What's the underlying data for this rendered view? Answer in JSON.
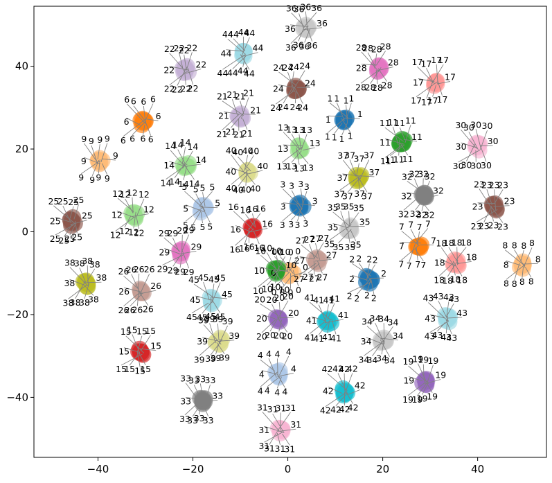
{
  "chart_data": {
    "type": "scatter",
    "title": "",
    "xlabel": "",
    "ylabel": "",
    "xlim": [
      -53.5,
      54.5
    ],
    "ylim": [
      -54.5,
      54.5
    ],
    "grid": false,
    "legend": "none",
    "x_ticks": [
      -40,
      -20,
      0,
      20,
      40
    ],
    "y_ticks": [
      -40,
      -20,
      0,
      20,
      40
    ],
    "x_tick_labels": [
      "−40",
      "−20",
      "0",
      "20",
      "40"
    ],
    "y_tick_labels": [
      "−40",
      "−20",
      "0",
      "20",
      "40"
    ],
    "arrow_color": "#808080",
    "clusters": [
      {
        "id": 0,
        "label": "0",
        "x": 0.5,
        "y": -10.0,
        "color": "#ffbb78"
      },
      {
        "id": 1,
        "label": "1",
        "x": 12.0,
        "y": 27.0,
        "color": "#1f77b4"
      },
      {
        "id": 2,
        "label": "2",
        "x": 17.0,
        "y": -11.5,
        "color": "#1f77b4"
      },
      {
        "id": 3,
        "label": "3",
        "x": 2.5,
        "y": 6.0,
        "color": "#1f77b4"
      },
      {
        "id": 4,
        "label": "4",
        "x": -2.0,
        "y": -34.5,
        "color": "#aec7e8"
      },
      {
        "id": 5,
        "label": "5",
        "x": -18.0,
        "y": 5.5,
        "color": "#aec7e8"
      },
      {
        "id": 6,
        "label": "6",
        "x": -30.5,
        "y": 26.5,
        "color": "#ff7f0e"
      },
      {
        "id": 7,
        "label": "7",
        "x": 27.5,
        "y": -3.5,
        "color": "#ff7f0e"
      },
      {
        "id": 8,
        "label": "8",
        "x": 49.5,
        "y": -8.0,
        "color": "#ffbb78"
      },
      {
        "id": 9,
        "label": "9",
        "x": -39.5,
        "y": 17.0,
        "color": "#ffbb78"
      },
      {
        "id": 10,
        "label": "10",
        "x": -2.5,
        "y": -9.5,
        "color": "#2ca02c"
      },
      {
        "id": 11,
        "label": "11",
        "x": 24.0,
        "y": 21.5,
        "color": "#2ca02c"
      },
      {
        "id": 12,
        "label": "12",
        "x": -32.5,
        "y": 4.0,
        "color": "#98df8a"
      },
      {
        "id": 13,
        "label": "13",
        "x": 2.5,
        "y": 20.0,
        "color": "#98df8a"
      },
      {
        "id": 14,
        "label": "14",
        "x": -21.5,
        "y": 16.0,
        "color": "#98df8a"
      },
      {
        "id": 15,
        "label": "15",
        "x": -31.0,
        "y": -29.0,
        "color": "#d62728"
      },
      {
        "id": 16,
        "label": "16",
        "x": -7.5,
        "y": 0.5,
        "color": "#d62728"
      },
      {
        "id": 17,
        "label": "17",
        "x": 31.0,
        "y": 36.0,
        "color": "#ff9896"
      },
      {
        "id": 18,
        "label": "18",
        "x": 35.5,
        "y": -7.5,
        "color": "#ff9896"
      },
      {
        "id": 19,
        "label": "19",
        "x": 29.0,
        "y": -36.0,
        "color": "#9467bd"
      },
      {
        "id": 20,
        "label": "20",
        "x": -2.0,
        "y": -21.0,
        "color": "#9467bd"
      },
      {
        "id": 21,
        "label": "21",
        "x": -10.0,
        "y": 28.0,
        "color": "#c5b0d5"
      },
      {
        "id": 22,
        "label": "22",
        "x": -21.5,
        "y": 39.0,
        "color": "#c5b0d5"
      },
      {
        "id": 23,
        "label": "23",
        "x": 43.5,
        "y": 6.0,
        "color": "#8c564b"
      },
      {
        "id": 24,
        "label": "24",
        "x": 1.5,
        "y": 34.5,
        "color": "#8c564b"
      },
      {
        "id": 25,
        "label": "25",
        "x": -45.5,
        "y": 2.5,
        "color": "#8c564b"
      },
      {
        "id": 26,
        "label": "26",
        "x": -31.0,
        "y": -14.5,
        "color": "#c49c94"
      },
      {
        "id": 27,
        "label": "27",
        "x": 6.0,
        "y": -7.0,
        "color": "#c49c94"
      },
      {
        "id": 28,
        "label": "28",
        "x": 19.0,
        "y": 39.5,
        "color": "#e377c2"
      },
      {
        "id": 29,
        "label": "29",
        "x": -22.5,
        "y": -5.0,
        "color": "#e377c2"
      },
      {
        "id": 30,
        "label": "30",
        "x": 40.0,
        "y": 20.5,
        "color": "#f7b6d2"
      },
      {
        "id": 31,
        "label": "31",
        "x": -1.5,
        "y": -48.0,
        "color": "#f7b6d2"
      },
      {
        "id": 32,
        "label": "32",
        "x": 28.5,
        "y": 8.5,
        "color": "#7f7f7f"
      },
      {
        "id": 33,
        "label": "33",
        "x": -18.0,
        "y": -41.0,
        "color": "#7f7f7f"
      },
      {
        "id": 34,
        "label": "34",
        "x": 20.0,
        "y": -26.5,
        "color": "#c7c7c7"
      },
      {
        "id": 35,
        "label": "35",
        "x": 13.0,
        "y": 1.0,
        "color": "#c7c7c7"
      },
      {
        "id": 36,
        "label": "36",
        "x": 4.0,
        "y": 49.0,
        "color": "#c7c7c7"
      },
      {
        "id": 37,
        "label": "37",
        "x": 15.0,
        "y": 13.0,
        "color": "#bcbd22"
      },
      {
        "id": 38,
        "label": "38",
        "x": -42.5,
        "y": -12.5,
        "color": "#bcbd22"
      },
      {
        "id": 39,
        "label": "39",
        "x": -14.5,
        "y": -26.5,
        "color": "#dbdb8d"
      },
      {
        "id": 40,
        "label": "40",
        "x": -8.5,
        "y": 14.5,
        "color": "#dbdb8d"
      },
      {
        "id": 41,
        "label": "41",
        "x": 8.5,
        "y": -21.5,
        "color": "#17becf"
      },
      {
        "id": 42,
        "label": "42",
        "x": 12.0,
        "y": -38.5,
        "color": "#17becf"
      },
      {
        "id": 43,
        "label": "43",
        "x": 33.5,
        "y": -21.0,
        "color": "#9edae5"
      },
      {
        "id": 44,
        "label": "44",
        "x": -9.5,
        "y": 43.0,
        "color": "#9edae5"
      },
      {
        "id": 45,
        "label": "45",
        "x": -16.0,
        "y": -16.5,
        "color": "#9edae5"
      }
    ]
  }
}
